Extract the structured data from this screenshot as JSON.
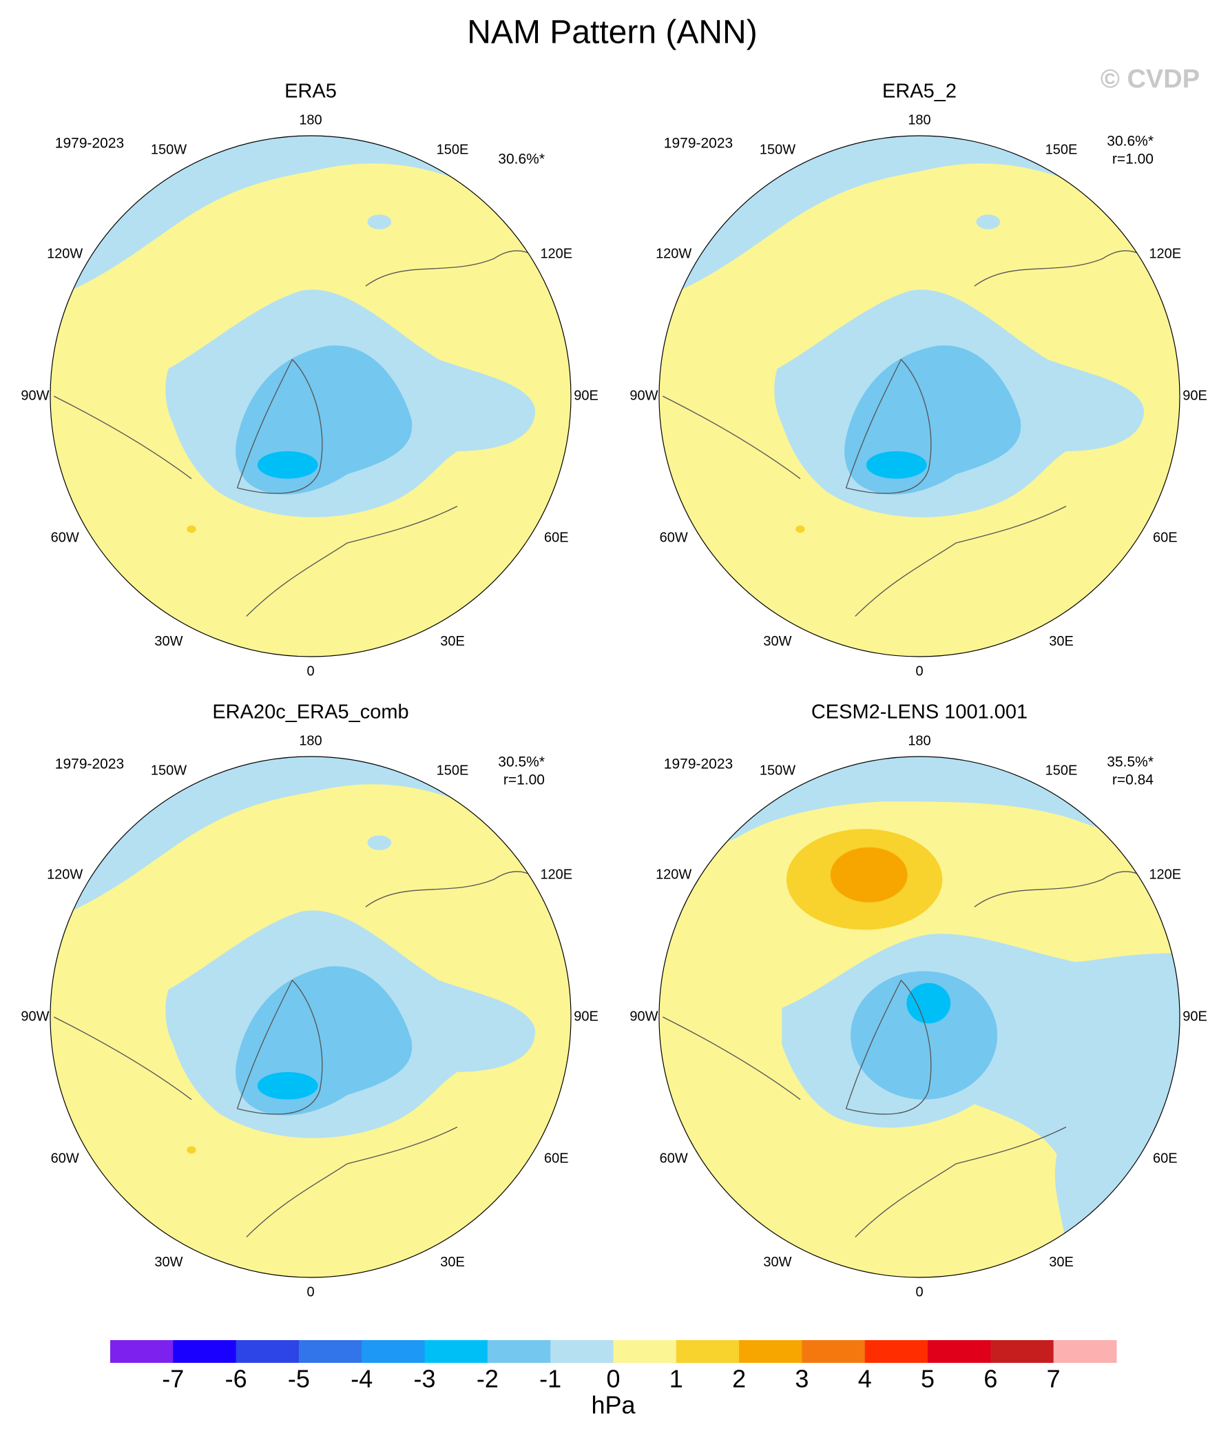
{
  "title": "NAM Pattern (ANN)",
  "watermark": "© CVDP",
  "lon_labels": [
    "180",
    "150E",
    "120E",
    "90E",
    "60E",
    "30E",
    "0",
    "30W",
    "60W",
    "90W",
    "120W",
    "150W"
  ],
  "panels": [
    {
      "title": "ERA5",
      "period": "1979-2023",
      "pct": "30.6%*"
    },
    {
      "title": "ERA5_2",
      "period": "1979-2023",
      "pct": "30.6%*",
      "r": "r=1.00"
    },
    {
      "title": "ERA20c_ERA5_comb",
      "period": "1979-2023",
      "pct": "30.5%*",
      "r": "r=1.00"
    },
    {
      "title": "CESM2-LENS 1001.001",
      "period": "1979-2023",
      "pct": "35.5%*",
      "r": "r=0.84"
    }
  ],
  "colorbar": {
    "colors": [
      "#7d22ee",
      "#1a00ff",
      "#2d44e6",
      "#3274ea",
      "#1e98f6",
      "#00bff7",
      "#74c7ef",
      "#b4e0f2",
      "#fbf594",
      "#f8d22d",
      "#f7a600",
      "#f5780f",
      "#ff2d00",
      "#e0001a",
      "#c61e1e",
      "#fcb0b0"
    ],
    "ticks": [
      -7,
      -6,
      -5,
      -4,
      -3,
      -2,
      -1,
      0,
      1,
      2,
      3,
      4,
      5,
      6,
      7
    ],
    "label": "hPa"
  }
}
